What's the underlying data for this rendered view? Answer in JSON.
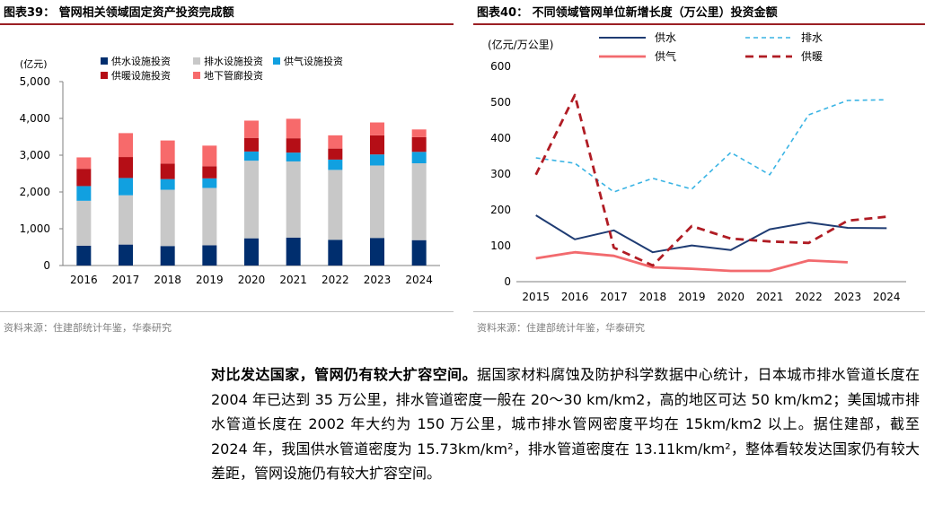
{
  "figure39": {
    "title": "图表39：  管网相关领域固定资产投资完成额",
    "source": "资料来源：住建部统计年鉴，华泰研究",
    "chart_data": {
      "type": "bar",
      "stacked": true,
      "unit_label": "(亿元)",
      "categories": [
        "2016",
        "2017",
        "2018",
        "2019",
        "2020",
        "2021",
        "2022",
        "2023",
        "2024"
      ],
      "ylim": [
        0,
        5000
      ],
      "yticks": [
        0,
        1000,
        2000,
        3000,
        4000,
        5000
      ],
      "ytick_labels": [
        "0",
        "1,000",
        "2,000",
        "3,000",
        "4,000",
        "5,000"
      ],
      "legend_position": "top",
      "series": [
        {
          "name": "供水设施投资",
          "color": "#002e6e",
          "values": [
            540,
            570,
            530,
            550,
            740,
            760,
            700,
            750,
            690
          ]
        },
        {
          "name": "排水设施投资",
          "color": "#c8c8c8",
          "values": [
            1220,
            1340,
            1530,
            1560,
            2110,
            2070,
            1900,
            1970,
            2090
          ]
        },
        {
          "name": "供气设施投资",
          "color": "#11a0e0",
          "values": [
            400,
            470,
            290,
            260,
            250,
            240,
            280,
            300,
            310
          ]
        },
        {
          "name": "供暖设施投资",
          "color": "#b50e16",
          "values": [
            470,
            570,
            420,
            330,
            370,
            390,
            300,
            520,
            400
          ]
        },
        {
          "name": "地下管廊投资",
          "color": "#f76a6b",
          "values": [
            310,
            650,
            630,
            560,
            470,
            530,
            360,
            350,
            210
          ]
        }
      ]
    }
  },
  "figure40": {
    "title": "图表40：  不同领域管网单位新增长度（万公里）投资金额",
    "source": "资料来源：住建部统计年鉴，华泰研究",
    "chart_data": {
      "type": "line",
      "unit_label": "(亿元/万公里)",
      "x": [
        "2015",
        "2016",
        "2017",
        "2018",
        "2019",
        "2020",
        "2021",
        "2022",
        "2023",
        "2024"
      ],
      "ylim": [
        0,
        600
      ],
      "yticks": [
        0,
        100,
        200,
        300,
        400,
        500,
        600
      ],
      "legend_position": "top",
      "series": [
        {
          "name": "供水",
          "color": "#1f3c73",
          "style": "solid",
          "values": [
            185,
            118,
            143,
            82,
            101,
            88,
            146,
            165,
            150,
            149
          ]
        },
        {
          "name": "排水",
          "color": "#3ab4e4",
          "style": "dashed-fine",
          "values": [
            345,
            330,
            250,
            288,
            258,
            360,
            298,
            465,
            505,
            507
          ]
        },
        {
          "name": "供气",
          "color": "#f26a6e",
          "style": "solid-thick",
          "values": [
            65,
            82,
            72,
            40,
            36,
            30,
            30,
            59,
            54,
            null
          ]
        },
        {
          "name": "供暖",
          "color": "#b01c24",
          "style": "dashed-bold",
          "values": [
            298,
            520,
            95,
            45,
            155,
            120,
            112,
            108,
            170,
            181
          ]
        }
      ]
    }
  },
  "paragraph": {
    "lead": "对比发达国家，管网仍有较大扩容空间。",
    "body": "据国家材料腐蚀及防护科学数据中心统计，日本城市排水管道长度在 2004 年已达到 35 万公里，排水管道密度一般在 20～30 km/km2，高的地区可达 50 km/km2；美国城市排水管道长度在 2002 年大约为 150 万公里，城市排水管网密度平均在 15km/km2 以上。据住建部，截至 2024 年，我国供水管道密度为 15.73km/km²，排水管道密度在 13.11km/km²，整体看较发达国家仍有较大差距，管网设施仍有较大扩容空间。"
  }
}
